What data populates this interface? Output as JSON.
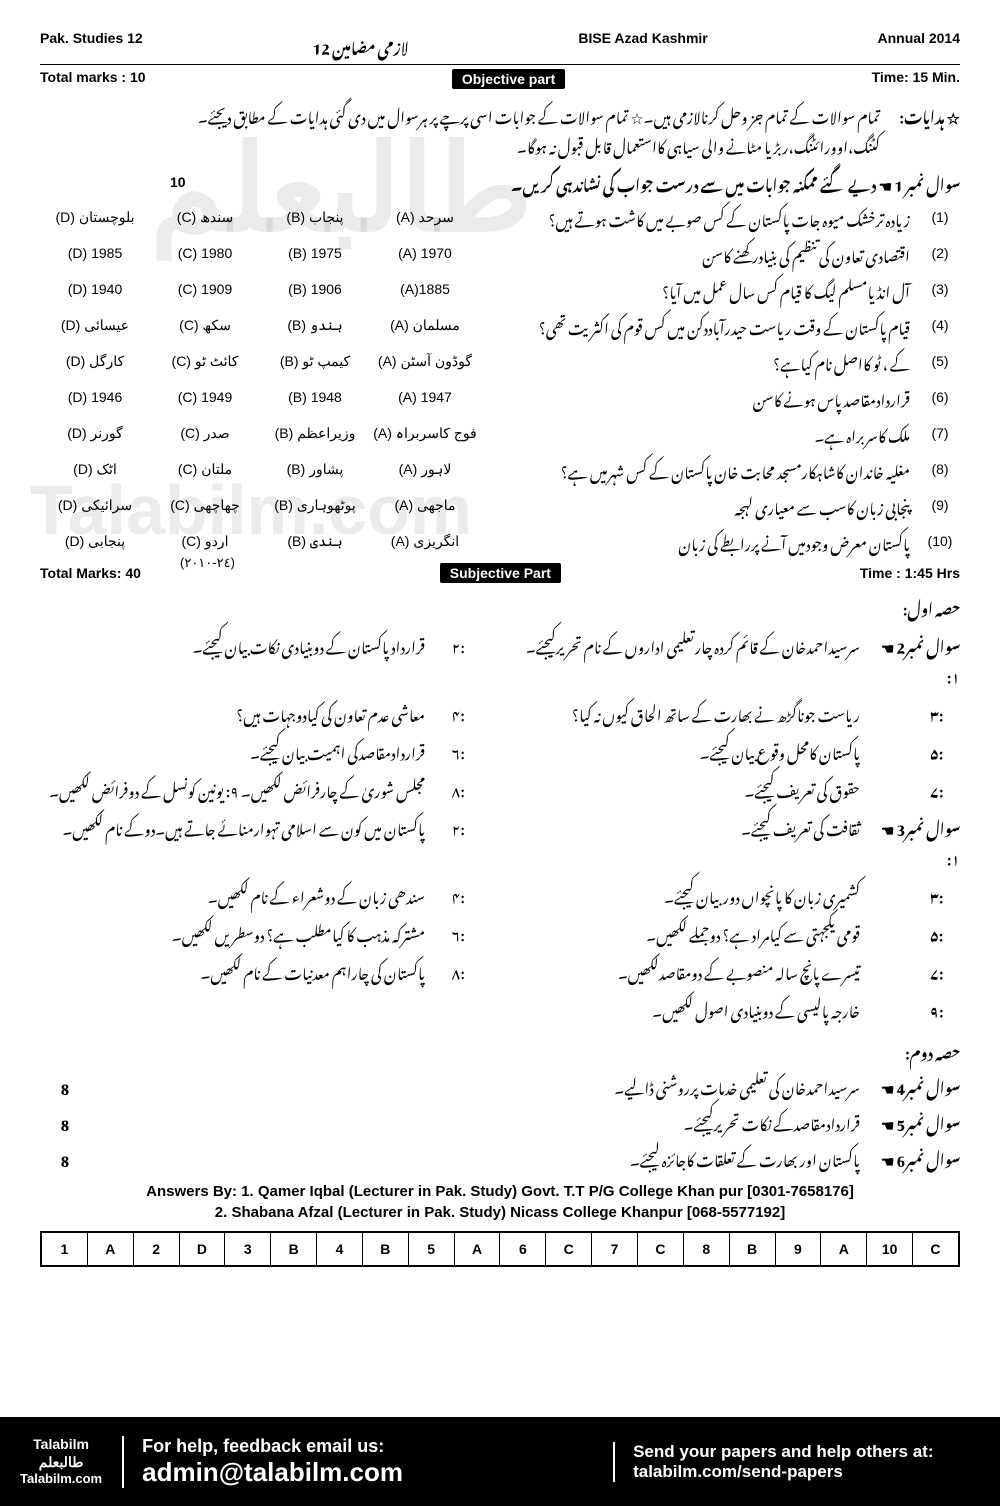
{
  "header": {
    "subject": "Pak. Studies  12",
    "subject_urdu": "لازمی مضامین 12",
    "board": "BISE  Azad Kashmir",
    "session": "Annual  2014"
  },
  "objective": {
    "total_marks_label": "Total marks : 10",
    "part_label": "Objective part",
    "time_label": "Time: 15 Min.",
    "instructions_label": "☆ ہدایات:",
    "instructions_line1": "تمام سوالات کے تمام جز وحل کرنالازمی ہیں۔☆ تمام سوالات کے جوابات اسی پرچے پر ہرسوال میں دی گئی ہدایات کے مطابق دیجئے۔",
    "instructions_line2": "کٹنگ،اوورائٹنگ،ربڑ یا مٹانے والی سیاہی کااستعمال قابل قبول نہ ہوگا۔",
    "q1_label": "سوال نمبر 1 ☚ دیے گئے ممکنہ جوابات میں سے درست جواب کی نشاندہی کریں۔",
    "q1_marks": "10",
    "mcqs": [
      {
        "n": "(1)",
        "q": "زیادہ ترخشک میوہ جات پاکستان کے کس صوبے میں کاشت ہوتے ہیں؟",
        "a": "(A) سرحد",
        "b": "(B) پنجاب",
        "c": "(C) سندھ",
        "d": "(D) بلوچستان"
      },
      {
        "n": "(2)",
        "q": "اقتصادی تعاون کی تنظیم کی بنیادرکھنے کاسن",
        "a": "(A) 1970",
        "b": "(B) 1975",
        "c": "(C) 1980",
        "d": "(D) 1985"
      },
      {
        "n": "(3)",
        "q": "آل انڈیامسلم لیگ کا قیام کس سال عمل میں آیا؟",
        "a": "(A)1885",
        "b": "(B) 1906",
        "c": "(C) 1909",
        "d": "(D) 1940"
      },
      {
        "n": "(4)",
        "q": "قیام پاکستان کے وقت ریاست حیدرآباددکن میں کس قوم کی اکثریت تھی؟",
        "a": "(A) مسلمان",
        "b": "(B) ہندو",
        "c": "(C) سکھ",
        "d": "(D) عیسائی"
      },
      {
        "n": "(5)",
        "q": "کے ، ٹو   کااصل نام کیاہے؟",
        "a": "(A) گوڈون آسٹن",
        "b": "(B) کیمپ ٹو",
        "c": "(C) کائٹ ٹو",
        "d": "(D) کارگل"
      },
      {
        "n": "(6)",
        "q": "قراردادمقاصد پاس ہونے کاسن",
        "a": "(A) 1947",
        "b": "(B) 1948",
        "c": "(C) 1949",
        "d": "(D) 1946"
      },
      {
        "n": "(7)",
        "q": "ملک کاسربراہ ہے۔",
        "a": "(A) فوج کاسربراہ",
        "b": "(B) وزیراعظم",
        "c": "(C) صدر",
        "d": "(D) گورنر"
      },
      {
        "n": "(8)",
        "q": "مغلیہ خاندان کاشاہکارمسجد محابت خان پاکستان کے کس شہرمیں ہے؟",
        "a": "(A) لاہور",
        "b": "(B) پشاور",
        "c": "(C) ملتان",
        "d": "(D) اٹک"
      },
      {
        "n": "(9)",
        "q": "پنجابی زبان کاسب سے معیاری لہجہ",
        "a": "(A) ماجھی",
        "b": "(B) پوٹھوہاری",
        "c": "(C) چھاچھی",
        "d": "(D) سرائیکی"
      },
      {
        "n": "(10)",
        "q": "پاکستان معرض وجودمیں آنے پررابطے کی زبان",
        "a": "(A) انگریزی",
        "b": "(B) ہندی",
        "c": "(C) اردو",
        "d": "(D) پنجابی"
      }
    ]
  },
  "subjective": {
    "total_marks_label": "Total Marks: 40",
    "part_label": "Subjective Part",
    "time_label": "Time : 1:45  Hrs",
    "margin_date": "(٢٤-٢٠١٠)",
    "section1_label": "حصہ اول:",
    "q2_label": "سوال نمبر2 ☚ ۱:",
    "q2_rows": [
      {
        "ln": "",
        "lt": "سرسیداحمدخان کے قائم کردہ چارتعلیمی اداروں کے نام تحریرکیجئے۔",
        "rn": ":۲",
        "rt": "قرارداد پاکستان کے دوبنیادی نکات بیان کیجئے۔"
      },
      {
        "ln": ":۳",
        "lt": "ریاست جوناگڑھ نے بھارت کے ساتھ الحاق کیوں نہ کیا؟",
        "rn": ":۴",
        "rt": "معاشی عدم تعاون کی کیادوجہات ہیں؟"
      },
      {
        "ln": ":۵",
        "lt": "پاکستان کامحل وقوع بیان کیجئے۔",
        "rn": ":۶",
        "rt": "قراردادمقاصدکی اہمیت بیان کیجئے۔"
      },
      {
        "ln": ":۷",
        "lt": "حقوق کی تعریف کیجئے۔",
        "rn": ":۸",
        "rt": "مجلس شوریٰ کے چارفرائض لکھیں۔         ۹:  یونین کونسل کے دوفرائض لکھیں۔"
      }
    ],
    "q3_label": "سوال نمبر3 ☚ ۱:",
    "q3_rows": [
      {
        "ln": "",
        "lt": "ثقافت کی تعریف کیجئے۔",
        "rn": ":۲",
        "rt": "پاکستان میں کون سے اسلامی تہوارمنائے جاتے ہیں۔دوکے نام لکھیں۔"
      },
      {
        "ln": ":۳",
        "lt": "کشمیری زبان کا پانچواں دوربیان کیجئے۔",
        "rn": ":۴",
        "rt": "سندھی زبان کے دوشعراء کے نام لکھیں۔"
      },
      {
        "ln": ":۵",
        "lt": "قومی یکجہتی سے کیامراد ہے؟ دوجملے لکھیں۔",
        "rn": ":۶",
        "rt": "مشترکہ مذہب کا کیامطلب ہے؟ دوسطریں لکھیں۔"
      },
      {
        "ln": ":۷",
        "lt": "تیسرے پانچ سالہ منصوبے کے دومقاصدلکھیں۔",
        "rn": ":۸",
        "rt": "پاکستان  کی چاراہم معدنیات کے نام لکھیں۔"
      },
      {
        "ln": ":۹",
        "lt": "خارجہ پالیسی کے دوبنیادی اصول لکھیں۔",
        "rn": "",
        "rt": ""
      }
    ],
    "section2_label": "حصہ دوم:",
    "long_qs": [
      {
        "n": "سوال نمبر4 ☚",
        "t": "سرسیداحمدخان کی تعلیمی خدمات پرروشنی ڈالیے۔",
        "m": "8"
      },
      {
        "n": "سوال نمبر5 ☚",
        "t": "قراردادمقاصدکے نکات تحریرکیجئے۔",
        "m": "8"
      },
      {
        "n": "سوال نمبر6 ☚",
        "t": "پاکستان اور بھارت کے تعلقات کاجائزہ لیجئے۔",
        "m": "8"
      }
    ]
  },
  "answers": {
    "by1": "Answers By: 1. Qamer Iqbal (Lecturer in Pak. Study) Govt. T.T P/G College Khan pur [0301-7658176]",
    "by2": "2. Shabana Afzal (Lecturer in Pak. Study) Nicass College Khanpur [068-5577192]",
    "key": [
      "1",
      "A",
      "2",
      "D",
      "3",
      "B",
      "4",
      "B",
      "5",
      "A",
      "6",
      "C",
      "7",
      "C",
      "8",
      "B",
      "9",
      "A",
      "10",
      "C"
    ]
  },
  "footer": {
    "logo1": "Talabilm",
    "logo2": "طالبعلم",
    "logo3": "Talabilm.com",
    "mid1": "For help, feedback email us:",
    "mid2": "admin@talabilm.com",
    "right1": "Send your papers and help others at:",
    "right2": "talabilm.com/send-papers"
  },
  "watermark1": "طالبعلم",
  "watermark2": "Talabilm.com"
}
